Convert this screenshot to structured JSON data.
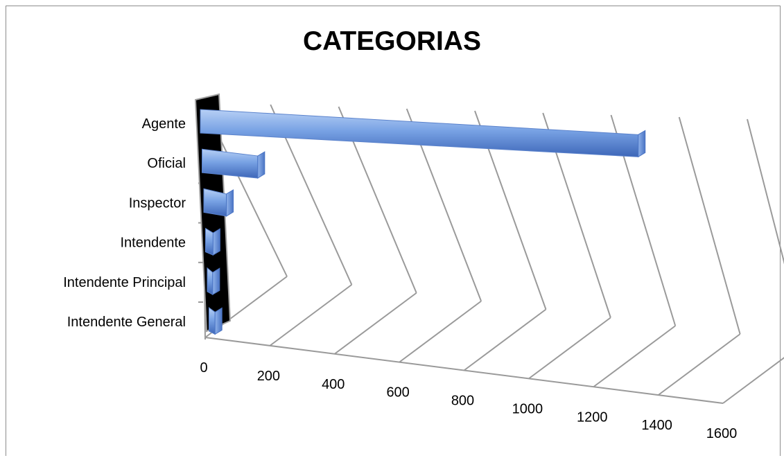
{
  "chart_data": {
    "type": "bar",
    "orientation": "horizontal",
    "style": "3d-cylinder",
    "title": "CATEGORIAS",
    "categories": [
      "Agente",
      "Oficial",
      "Inspector",
      "Intendente",
      "Intendente Principal",
      "Intendente General"
    ],
    "values": [
      1455,
      185,
      75,
      25,
      18,
      20
    ],
    "xticks": [
      "0",
      "200",
      "400",
      "600",
      "800",
      "1000",
      "1200",
      "1400",
      "1600"
    ],
    "xlim": [
      0,
      1600
    ],
    "grid": true,
    "legend": "none",
    "colors": {
      "bar": "#6f9ae0",
      "bar_light": "#a9c6f2",
      "bar_dark": "#3f6cbf",
      "back_wall": "#000000",
      "grid": "#9a9a9a"
    }
  }
}
